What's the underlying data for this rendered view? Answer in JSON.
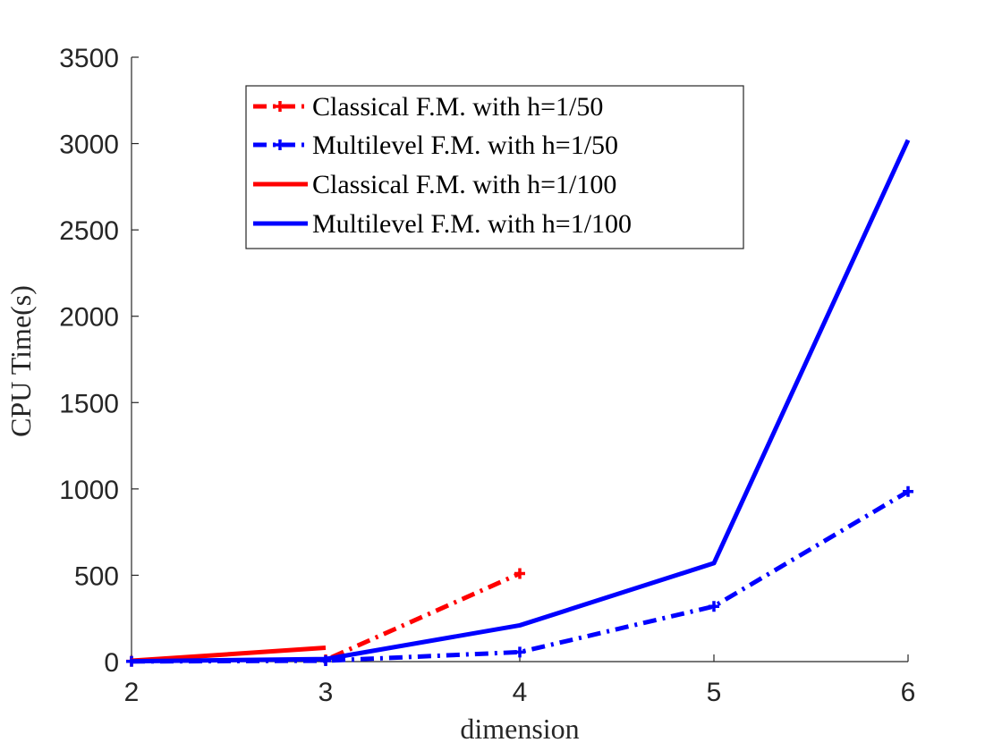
{
  "chart_data": {
    "type": "line",
    "title": "",
    "xlabel": "dimension",
    "ylabel": "CPU Time(s)",
    "xlim": [
      2,
      6
    ],
    "ylim": [
      0,
      3500
    ],
    "xticks": [
      2,
      3,
      4,
      5,
      6
    ],
    "yticks": [
      0,
      500,
      1000,
      1500,
      2000,
      2500,
      3000,
      3500
    ],
    "grid": false,
    "legend_position": "top-center",
    "series": [
      {
        "name": "Classical F.M. with h=1/50",
        "color": "#ff0000",
        "line_style": "dash-dot",
        "marker": "plus",
        "x": [
          2,
          3,
          4
        ],
        "y": [
          2,
          10,
          510
        ]
      },
      {
        "name": "Multilevel F.M. with h=1/50",
        "color": "#0000ff",
        "line_style": "dash-dot",
        "marker": "plus",
        "x": [
          2,
          3,
          4,
          5,
          6
        ],
        "y": [
          1,
          5,
          55,
          320,
          985
        ]
      },
      {
        "name": "Classical F.M. with h=1/100",
        "color": "#ff0000",
        "line_style": "solid",
        "marker": "none",
        "x": [
          2,
          3
        ],
        "y": [
          5,
          80
        ]
      },
      {
        "name": "Multilevel F.M. with h=1/100",
        "color": "#0000ff",
        "line_style": "solid",
        "marker": "none",
        "x": [
          2,
          3,
          4,
          5,
          6
        ],
        "y": [
          2,
          15,
          210,
          570,
          3020
        ]
      }
    ]
  }
}
